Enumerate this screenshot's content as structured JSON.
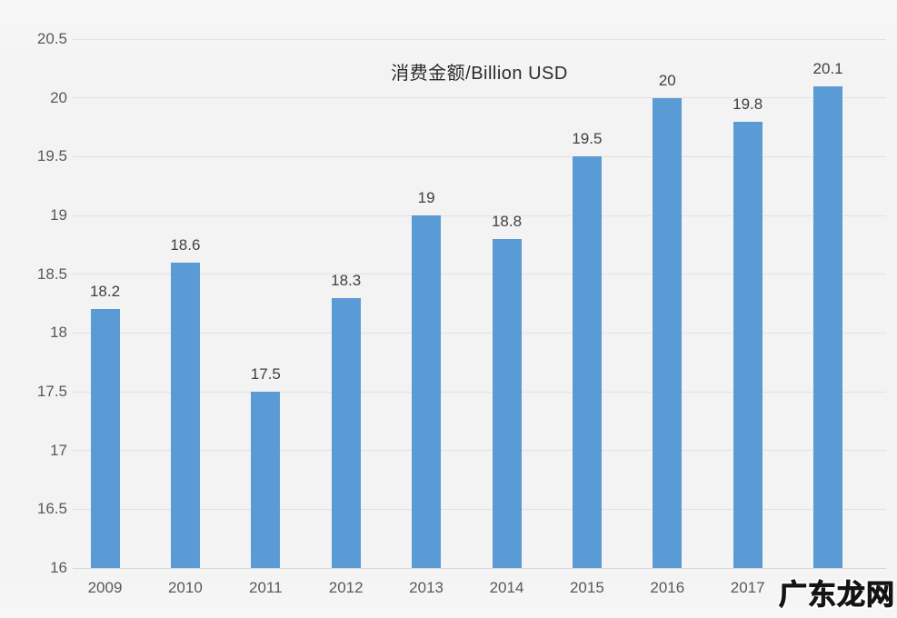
{
  "chart_data": {
    "type": "bar",
    "title": "消费金额/Billion USD",
    "categories": [
      "2009",
      "2010",
      "2011",
      "2012",
      "2013",
      "2014",
      "2015",
      "2016",
      "2017",
      ""
    ],
    "values": [
      18.2,
      18.6,
      17.5,
      18.3,
      19,
      18.8,
      19.5,
      20,
      19.8,
      20.1
    ],
    "data_labels": [
      "18.2",
      "18.6",
      "17.5",
      "18.3",
      "19",
      "18.8",
      "19.5",
      "20",
      "19.8",
      "20.1"
    ],
    "xlabel": "",
    "ylabel": "",
    "ylim": [
      16,
      20.5
    ],
    "ytick_step": 0.5,
    "grid": true,
    "legend_position": "none",
    "bar_color": "#5b9bd5",
    "gridline_color": "#e1e1e2",
    "tick_text_color": "#595959",
    "label_text_color": "#3f3f3f"
  },
  "watermark": "广东龙网"
}
